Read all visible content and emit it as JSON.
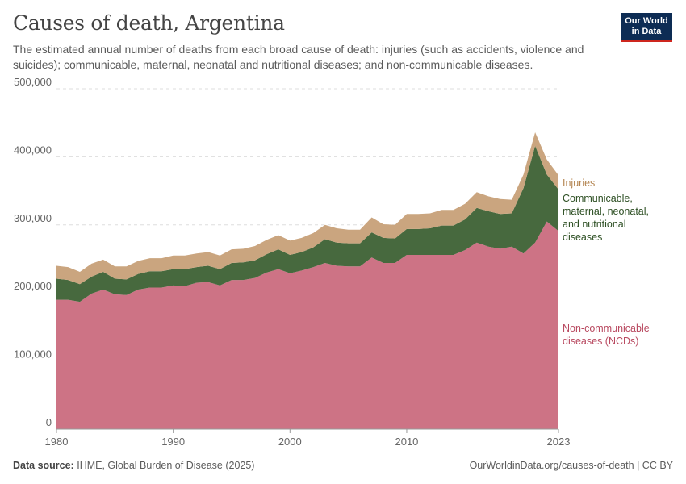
{
  "header": {
    "title": "Causes of death, Argentina",
    "subtitle": "The estimated annual number of deaths from each broad cause of death: injuries (such as accidents, violence and suicides); communicable, maternal, neonatal and nutritional diseases; and non-communicable diseases.",
    "logo_line1": "Our World",
    "logo_line2": "in Data"
  },
  "footer": {
    "source_label": "Data source:",
    "source_text": "IHME, Global Burden of Disease (2025)",
    "url_text": "OurWorldinData.org/causes-of-death | CC BY"
  },
  "colors": {
    "ncd": "#cd7385",
    "communicable": "#47693e",
    "injuries": "#caa57f",
    "ncd_label": "#b8485f",
    "communicable_label": "#2d4f23",
    "injuries_label": "#b48551"
  },
  "chart_data": {
    "type": "area",
    "stacked": true,
    "x": [
      1980,
      1981,
      1982,
      1983,
      1984,
      1985,
      1986,
      1987,
      1988,
      1989,
      1990,
      1991,
      1992,
      1993,
      1994,
      1995,
      1996,
      1997,
      1998,
      1999,
      2000,
      2001,
      2002,
      2003,
      2004,
      2005,
      2006,
      2007,
      2008,
      2009,
      2010,
      2011,
      2012,
      2013,
      2014,
      2015,
      2016,
      2017,
      2018,
      2019,
      2020,
      2021,
      2022,
      2023
    ],
    "series": [
      {
        "name": "Non-communicable diseases (NCDs)",
        "label_lines": [
          "Non-communicable",
          "diseases (NCDs)"
        ],
        "values": [
          190000,
          190000,
          187000,
          199000,
          205000,
          198000,
          197000,
          205000,
          208000,
          208000,
          211000,
          210000,
          215000,
          216000,
          211000,
          219000,
          219000,
          222000,
          230000,
          235000,
          229000,
          233000,
          238000,
          244000,
          240000,
          239000,
          239000,
          252000,
          244000,
          244000,
          256000,
          256000,
          256000,
          256000,
          256000,
          263000,
          274000,
          268000,
          265000,
          268000,
          258000,
          274000,
          305000,
          291000
        ]
      },
      {
        "name": "Communicable, maternal, neonatal, and nutritional diseases",
        "label_lines": [
          "Communicable,",
          "maternal, neonatal,",
          "and nutritional",
          "diseases"
        ],
        "values": [
          31000,
          29000,
          26000,
          25000,
          26000,
          23000,
          23000,
          23000,
          24000,
          24000,
          24000,
          25000,
          23000,
          24000,
          24000,
          25000,
          26000,
          26000,
          27000,
          29000,
          27000,
          27000,
          29000,
          35000,
          34000,
          34000,
          34000,
          37000,
          37000,
          36000,
          38000,
          38000,
          39000,
          43000,
          43000,
          45000,
          51000,
          52000,
          51000,
          49000,
          96000,
          142000,
          69000,
          61000
        ]
      },
      {
        "name": "Injuries",
        "label_lines": [
          "Injuries"
        ],
        "values": [
          19000,
          19000,
          18000,
          19000,
          18000,
          18000,
          19000,
          19000,
          19000,
          19000,
          20000,
          20000,
          20000,
          20000,
          20000,
          20000,
          20000,
          21000,
          21000,
          21000,
          21000,
          21000,
          21000,
          21000,
          21000,
          20000,
          20000,
          22000,
          20000,
          20000,
          22000,
          22000,
          22000,
          23000,
          23000,
          23000,
          23000,
          22000,
          22000,
          20000,
          20000,
          20000,
          22000,
          21000
        ]
      }
    ],
    "xticks": [
      1980,
      1990,
      2000,
      2010,
      2023
    ],
    "xtick_labels": [
      "1980",
      "1990",
      "2000",
      "2010",
      "2023"
    ],
    "yticks": [
      0,
      100000,
      200000,
      300000,
      400000,
      500000
    ],
    "ytick_labels": [
      "0",
      "100,000",
      "200,000",
      "300,000",
      "400,000",
      "500,000"
    ],
    "xlim": [
      1980,
      2023
    ],
    "ylim": [
      0,
      500000
    ],
    "grid": "horizontal-dashed",
    "legend": "inline-right"
  }
}
